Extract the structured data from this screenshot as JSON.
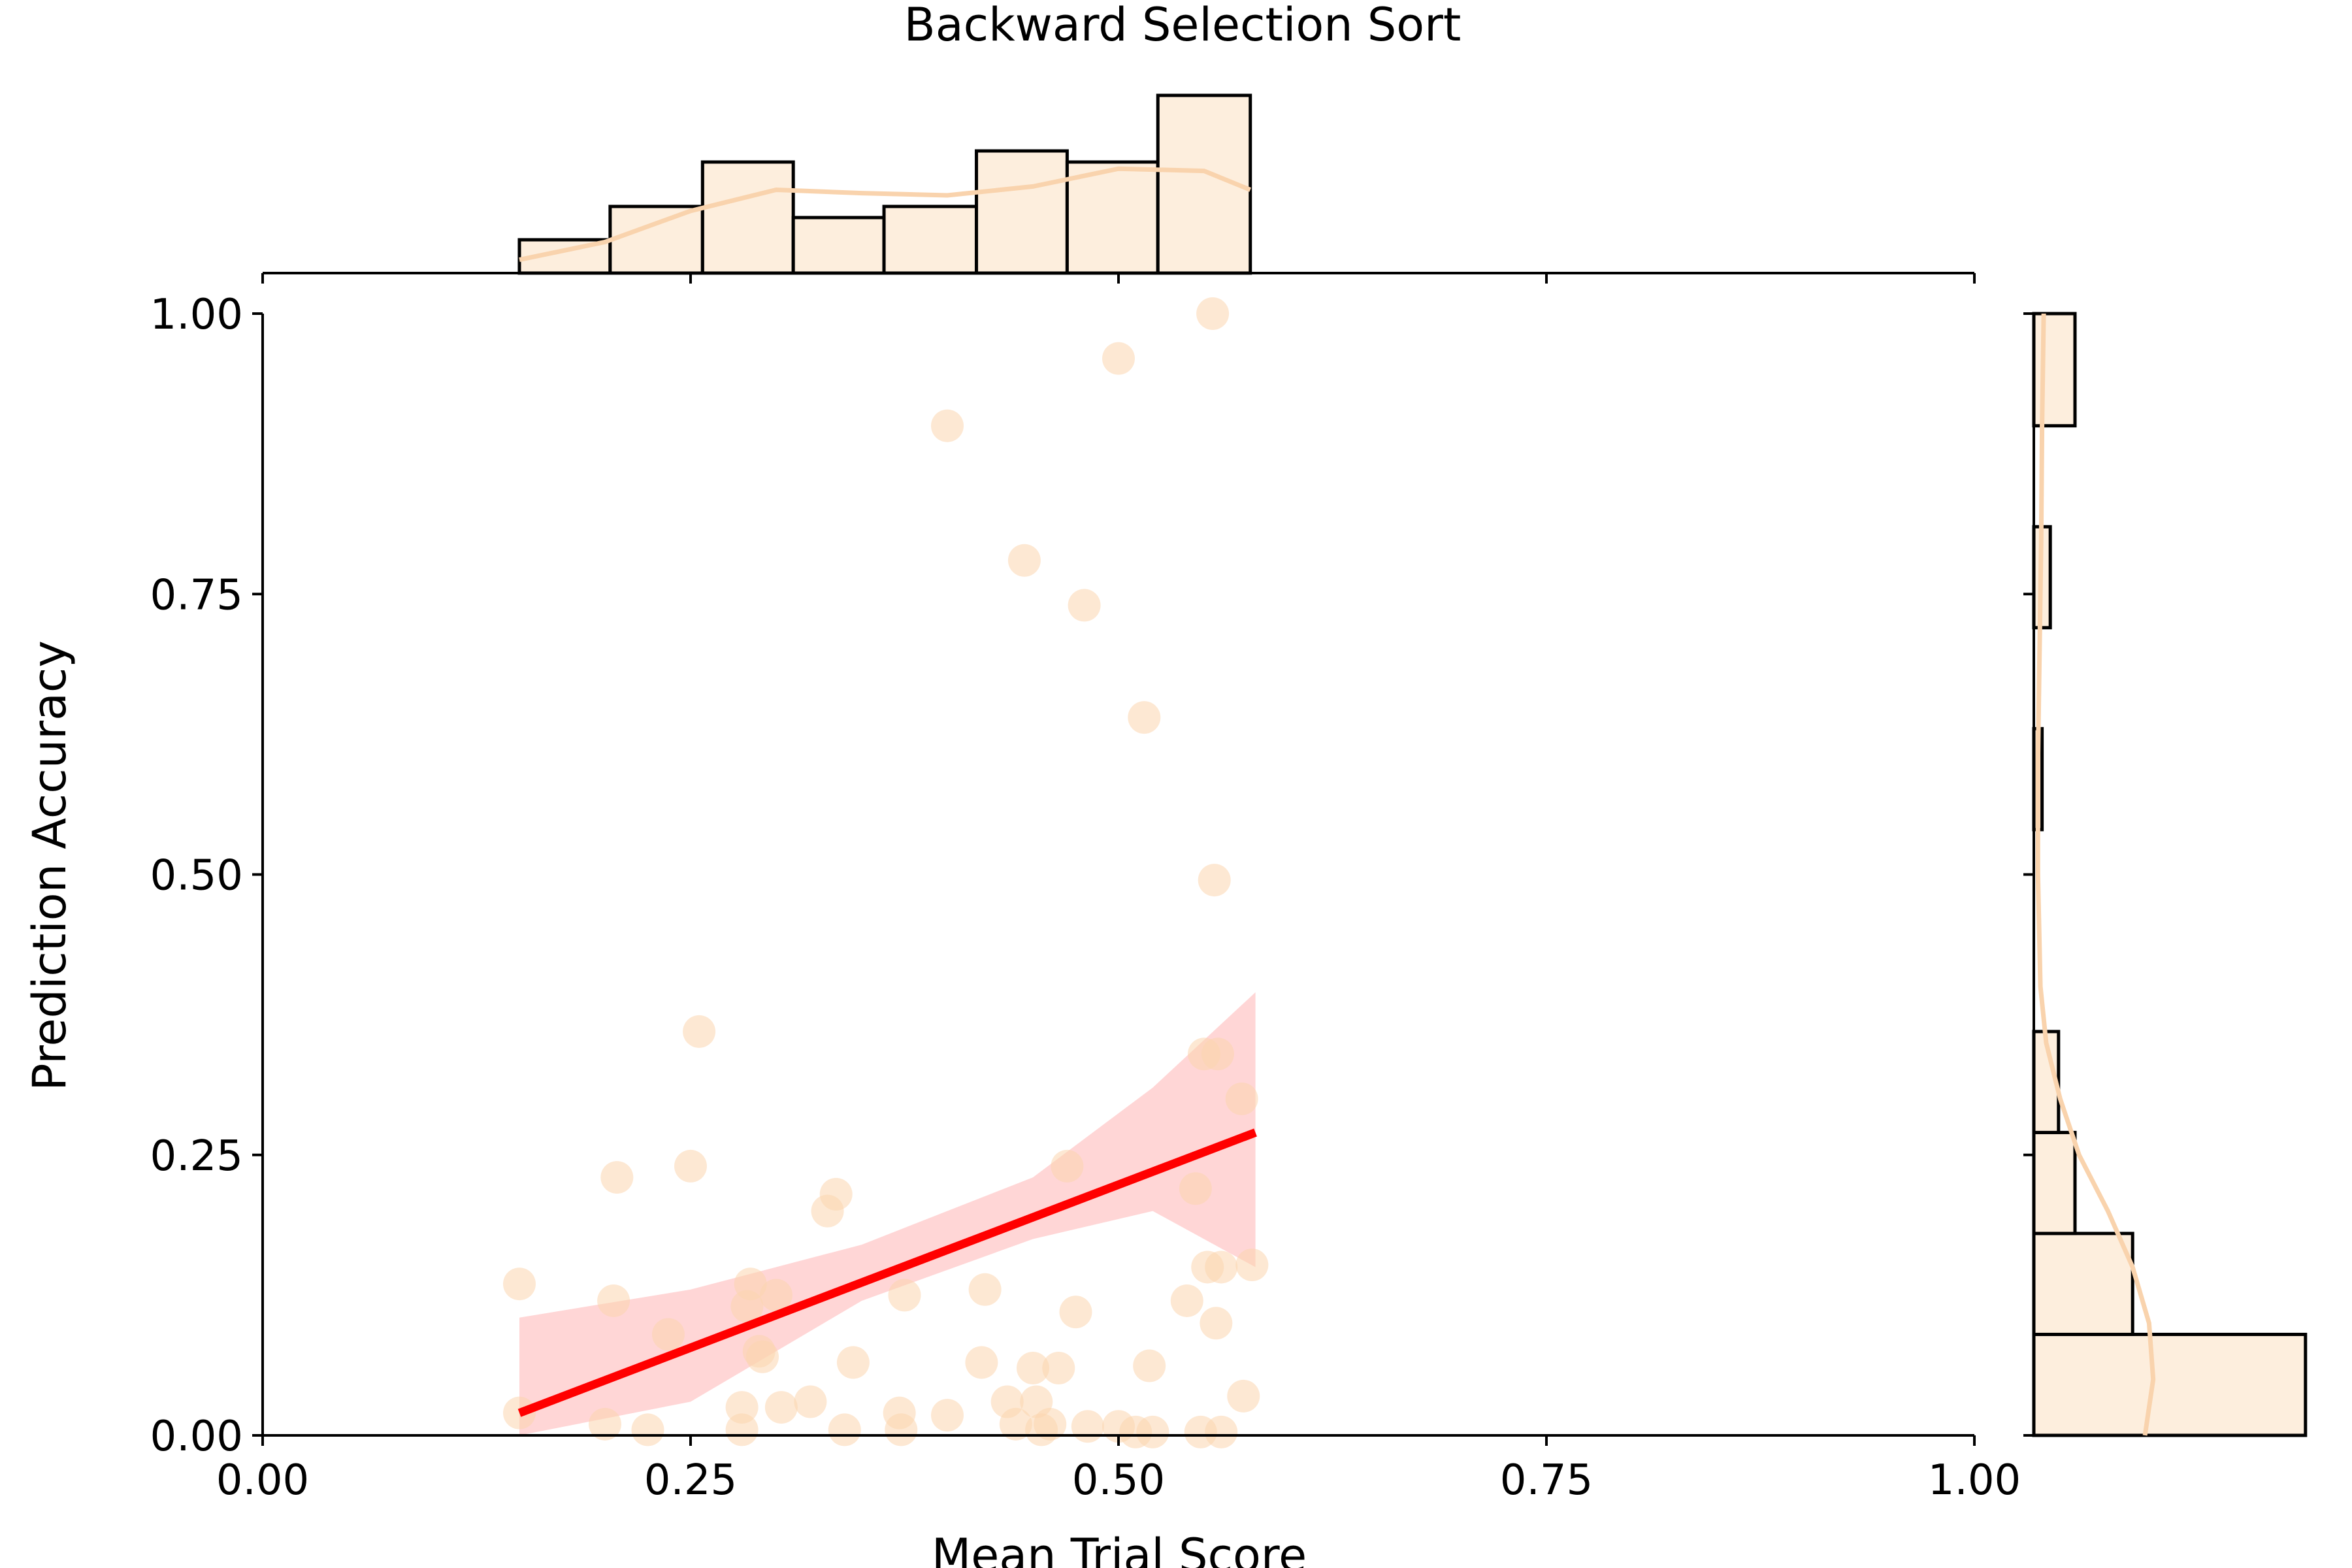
{
  "chart_data": {
    "type": "scatter",
    "title": "Backward Selection Sort",
    "xlabel": "Mean Trial Score",
    "ylabel": "Prediction Accuracy",
    "xlim": [
      0,
      1
    ],
    "ylim": [
      0,
      1
    ],
    "xticks": [
      "0.00",
      "0.25",
      "0.50",
      "0.75",
      "1.00"
    ],
    "yticks": [
      "0.00",
      "0.25",
      "0.50",
      "0.75",
      "1.00"
    ],
    "grid": false,
    "colors": {
      "points": "#fcd5ae",
      "hist_fill": "#fdeedd",
      "hist_edge": "#000000",
      "kde": "#f9d3ad",
      "regression_line": "#ff0000",
      "confidence_band": "#ffc8c8"
    },
    "scatter_points": [
      [
        0.15,
        0.135
      ],
      [
        0.15,
        0.02
      ],
      [
        0.2,
        0.01
      ],
      [
        0.205,
        0.12
      ],
      [
        0.207,
        0.23
      ],
      [
        0.225,
        0.005
      ],
      [
        0.237,
        0.09
      ],
      [
        0.25,
        0.24
      ],
      [
        0.255,
        0.36
      ],
      [
        0.28,
        0.025
      ],
      [
        0.28,
        0.005
      ],
      [
        0.283,
        0.115
      ],
      [
        0.285,
        0.135
      ],
      [
        0.29,
        0.075
      ],
      [
        0.292,
        0.07
      ],
      [
        0.3,
        0.125
      ],
      [
        0.303,
        0.025
      ],
      [
        0.32,
        0.03
      ],
      [
        0.33,
        0.2
      ],
      [
        0.335,
        0.215
      ],
      [
        0.34,
        0.005
      ],
      [
        0.345,
        0.065
      ],
      [
        0.372,
        0.02
      ],
      [
        0.373,
        0.005
      ],
      [
        0.375,
        0.125
      ],
      [
        0.4,
        0.018
      ],
      [
        0.4,
        0.9
      ],
      [
        0.42,
        0.065
      ],
      [
        0.422,
        0.13
      ],
      [
        0.435,
        0.03
      ],
      [
        0.44,
        0.01
      ],
      [
        0.445,
        0.78
      ],
      [
        0.45,
        0.06
      ],
      [
        0.452,
        0.03
      ],
      [
        0.455,
        0.005
      ],
      [
        0.46,
        0.01
      ],
      [
        0.465,
        0.06
      ],
      [
        0.47,
        0.24
      ],
      [
        0.475,
        0.11
      ],
      [
        0.48,
        0.74
      ],
      [
        0.482,
        0.008
      ],
      [
        0.5,
        0.96
      ],
      [
        0.5,
        0.008
      ],
      [
        0.51,
        0.003
      ],
      [
        0.515,
        0.64
      ],
      [
        0.518,
        0.062
      ],
      [
        0.52,
        0.003
      ],
      [
        0.54,
        0.12
      ],
      [
        0.545,
        0.22
      ],
      [
        0.548,
        0.003
      ],
      [
        0.55,
        0.34
      ],
      [
        0.552,
        0.15
      ],
      [
        0.555,
        1.0
      ],
      [
        0.556,
        0.495
      ],
      [
        0.557,
        0.1
      ],
      [
        0.558,
        0.34
      ],
      [
        0.56,
        0.15
      ],
      [
        0.56,
        0.003
      ],
      [
        0.572,
        0.3
      ],
      [
        0.573,
        0.035
      ],
      [
        0.578,
        0.152
      ]
    ],
    "regression": {
      "x": [
        0.15,
        0.58
      ],
      "y": [
        0.02,
        0.27
      ],
      "ci_upper": [
        [
          0.15,
          0.105
        ],
        [
          0.25,
          0.13
        ],
        [
          0.35,
          0.17
        ],
        [
          0.45,
          0.23
        ],
        [
          0.52,
          0.31
        ],
        [
          0.58,
          0.395
        ]
      ],
      "ci_lower": [
        [
          0.15,
          -0.07
        ],
        [
          0.25,
          0.03
        ],
        [
          0.35,
          0.12
        ],
        [
          0.45,
          0.175
        ],
        [
          0.52,
          0.2
        ],
        [
          0.58,
          0.15
        ]
      ]
    },
    "marginal_x": {
      "bin_edges": [
        0.15,
        0.203,
        0.257,
        0.31,
        0.363,
        0.417,
        0.47,
        0.523,
        0.577
      ],
      "counts": [
        3,
        6,
        10,
        5,
        6,
        11,
        10,
        16
      ],
      "kde": [
        [
          0.15,
          1.2
        ],
        [
          0.2,
          2.8
        ],
        [
          0.25,
          5.6
        ],
        [
          0.3,
          7.5
        ],
        [
          0.35,
          7.2
        ],
        [
          0.4,
          7.0
        ],
        [
          0.45,
          7.8
        ],
        [
          0.5,
          9.4
        ],
        [
          0.55,
          9.2
        ],
        [
          0.577,
          7.5
        ]
      ]
    },
    "marginal_y": {
      "bin_edges": [
        0,
        0.09,
        0.18,
        0.27,
        0.36,
        0.45,
        0.54,
        0.63,
        0.72,
        0.81,
        0.9,
        1.0
      ],
      "counts": [
        33,
        12,
        5,
        3,
        0,
        0,
        1,
        0,
        2,
        0,
        5
      ],
      "kde": [
        [
          0.0,
          13.5
        ],
        [
          0.05,
          14.5
        ],
        [
          0.1,
          14.0
        ],
        [
          0.15,
          12.0
        ],
        [
          0.2,
          9.0
        ],
        [
          0.25,
          5.5
        ],
        [
          0.3,
          3.2
        ],
        [
          0.35,
          1.5
        ],
        [
          0.4,
          0.8
        ],
        [
          0.5,
          0.5
        ],
        [
          0.6,
          0.5
        ],
        [
          0.7,
          0.7
        ],
        [
          0.8,
          0.9
        ],
        [
          0.9,
          1.0
        ],
        [
          1.0,
          1.2
        ]
      ]
    }
  }
}
